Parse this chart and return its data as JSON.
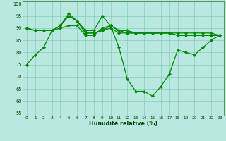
{
  "xlabel": "Humidité relative (%)",
  "background_color": "#b8e8e0",
  "grid_color": "#88ccbb",
  "line_color": "#008800",
  "marker": "D",
  "markersize": 2.2,
  "linewidth": 0.9,
  "xlim": [
    -0.5,
    23.5
  ],
  "ylim": [
    54,
    101
  ],
  "yticks": [
    55,
    60,
    65,
    70,
    75,
    80,
    85,
    90,
    95,
    100
  ],
  "xticks": [
    0,
    1,
    2,
    3,
    4,
    5,
    6,
    7,
    8,
    9,
    10,
    11,
    12,
    13,
    14,
    15,
    16,
    17,
    18,
    19,
    20,
    21,
    22,
    23
  ],
  "series": [
    [
      75,
      79,
      82,
      89,
      90,
      91,
      91,
      87,
      87,
      90,
      91,
      82,
      69,
      64,
      64,
      62,
      66,
      71,
      81,
      80,
      79,
      82,
      85,
      87
    ],
    [
      90,
      89,
      89,
      89,
      91,
      95,
      93,
      88,
      88,
      89,
      91,
      89,
      89,
      88,
      88,
      88,
      88,
      88,
      87,
      87,
      87,
      87,
      87,
      87
    ],
    [
      90,
      89,
      89,
      89,
      91,
      96,
      93,
      89,
      89,
      95,
      91,
      89,
      88,
      88,
      88,
      88,
      88,
      88,
      88,
      88,
      88,
      88,
      88,
      87
    ],
    [
      90,
      89,
      89,
      89,
      91,
      95,
      93,
      88,
      88,
      89,
      90,
      88,
      88,
      88,
      88,
      88,
      88,
      88,
      87,
      87,
      87,
      87,
      87,
      87
    ]
  ]
}
